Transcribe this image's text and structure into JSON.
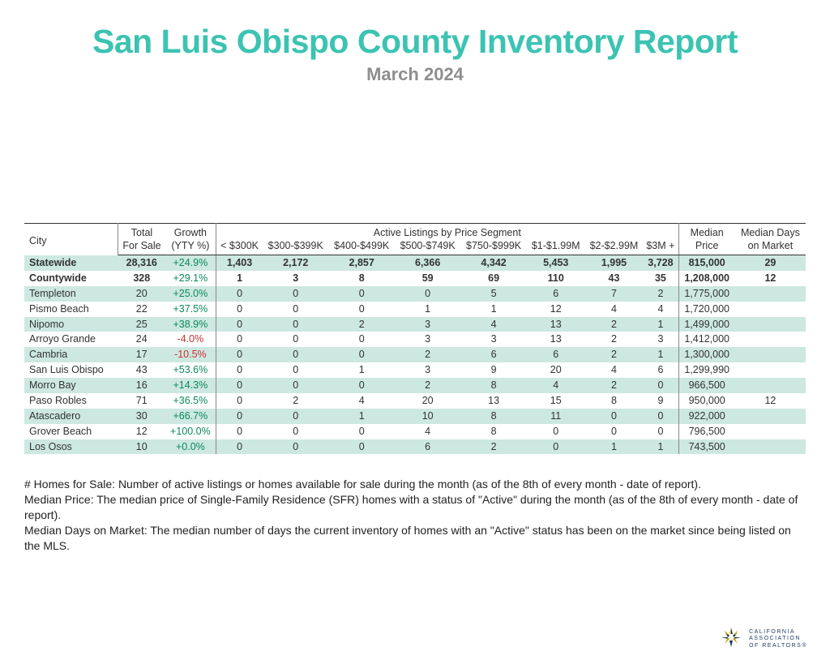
{
  "colors": {
    "title": "#3cc3b2",
    "subtitle": "#8e8e8e",
    "row_shade": "#cde8e1",
    "border": "#333333",
    "divider": "#888888",
    "growth_pos": "#0a8a5a",
    "growth_neg": "#c83232",
    "text": "#333333",
    "logo_primary": "#1a3a5a",
    "logo_accent": "#d4a017"
  },
  "header": {
    "title": "San Luis Obispo County Inventory Report",
    "subtitle": "March 2024"
  },
  "table": {
    "columns_top": {
      "city": "City",
      "total": "Total",
      "growth": "Growth",
      "active_segment": "Active Listings by Price Segment",
      "median": "Median",
      "median_days": "Median Days"
    },
    "columns_bottom": {
      "for_sale": "For Sale",
      "yty": "(YTY %)",
      "seg1": "< $300K",
      "seg2": "$300-$399K",
      "seg3": "$400-$499K",
      "seg4": "$500-$749K",
      "seg5": "$750-$999K",
      "seg6": "$1-$1.99M",
      "seg7": "$2-$2.99M",
      "seg8": "$3M +",
      "price": "Price",
      "on_market": "on Market"
    },
    "rows": [
      {
        "city": "Statewide",
        "bold": true,
        "shade": true,
        "for_sale": "28,316",
        "growth": "+24.9%",
        "growth_dir": "pos",
        "seg": [
          "1,403",
          "2,172",
          "2,857",
          "6,366",
          "4,342",
          "5,453",
          "1,995",
          "3,728"
        ],
        "price": "815,000",
        "days": "29"
      },
      {
        "city": "Countywide",
        "bold": true,
        "shade": false,
        "for_sale": "328",
        "growth": "+29.1%",
        "growth_dir": "pos",
        "seg": [
          "1",
          "3",
          "8",
          "59",
          "69",
          "110",
          "43",
          "35"
        ],
        "price": "1,208,000",
        "days": "12"
      },
      {
        "city": "Templeton",
        "bold": false,
        "shade": true,
        "for_sale": "20",
        "growth": "+25.0%",
        "growth_dir": "pos",
        "seg": [
          "0",
          "0",
          "0",
          "0",
          "5",
          "6",
          "7",
          "2"
        ],
        "price": "1,775,000",
        "days": ""
      },
      {
        "city": "Pismo Beach",
        "bold": false,
        "shade": false,
        "for_sale": "22",
        "growth": "+37.5%",
        "growth_dir": "pos",
        "seg": [
          "0",
          "0",
          "0",
          "1",
          "1",
          "12",
          "4",
          "4"
        ],
        "price": "1,720,000",
        "days": ""
      },
      {
        "city": "Nipomo",
        "bold": false,
        "shade": true,
        "for_sale": "25",
        "growth": "+38.9%",
        "growth_dir": "pos",
        "seg": [
          "0",
          "0",
          "2",
          "3",
          "4",
          "13",
          "2",
          "1"
        ],
        "price": "1,499,000",
        "days": ""
      },
      {
        "city": "Arroyo Grande",
        "bold": false,
        "shade": false,
        "for_sale": "24",
        "growth": "-4.0%",
        "growth_dir": "neg",
        "seg": [
          "0",
          "0",
          "0",
          "3",
          "3",
          "13",
          "2",
          "3"
        ],
        "price": "1,412,000",
        "days": ""
      },
      {
        "city": "Cambria",
        "bold": false,
        "shade": true,
        "for_sale": "17",
        "growth": "-10.5%",
        "growth_dir": "neg",
        "seg": [
          "0",
          "0",
          "0",
          "2",
          "6",
          "6",
          "2",
          "1"
        ],
        "price": "1,300,000",
        "days": ""
      },
      {
        "city": "San Luis Obispo",
        "bold": false,
        "shade": false,
        "for_sale": "43",
        "growth": "+53.6%",
        "growth_dir": "pos",
        "seg": [
          "0",
          "0",
          "1",
          "3",
          "9",
          "20",
          "4",
          "6"
        ],
        "price": "1,299,990",
        "days": ""
      },
      {
        "city": "Morro Bay",
        "bold": false,
        "shade": true,
        "for_sale": "16",
        "growth": "+14.3%",
        "growth_dir": "pos",
        "seg": [
          "0",
          "0",
          "0",
          "2",
          "8",
          "4",
          "2",
          "0"
        ],
        "price": "966,500",
        "days": ""
      },
      {
        "city": "Paso Robles",
        "bold": false,
        "shade": false,
        "for_sale": "71",
        "growth": "+36.5%",
        "growth_dir": "pos",
        "seg": [
          "0",
          "2",
          "4",
          "20",
          "13",
          "15",
          "8",
          "9"
        ],
        "price": "950,000",
        "days": "12"
      },
      {
        "city": "Atascadero",
        "bold": false,
        "shade": true,
        "for_sale": "30",
        "growth": "+66.7%",
        "growth_dir": "pos",
        "seg": [
          "0",
          "0",
          "1",
          "10",
          "8",
          "11",
          "0",
          "0"
        ],
        "price": "922,000",
        "days": ""
      },
      {
        "city": "Grover Beach",
        "bold": false,
        "shade": false,
        "for_sale": "12",
        "growth": "+100.0%",
        "growth_dir": "pos",
        "seg": [
          "0",
          "0",
          "0",
          "4",
          "8",
          "0",
          "0",
          "0"
        ],
        "price": "796,500",
        "days": ""
      },
      {
        "city": "Los Osos",
        "bold": false,
        "shade": true,
        "for_sale": "10",
        "growth": "+0.0%",
        "growth_dir": "pos",
        "seg": [
          "0",
          "0",
          "0",
          "6",
          "2",
          "0",
          "1",
          "1"
        ],
        "price": "743,500",
        "days": ""
      }
    ]
  },
  "footnotes": {
    "line1": "# Homes for Sale: Number of active listings or homes available for sale during the month (as of the 8th of every month - date of report).",
    "line2": "Median Price: The median price of Single-Family Residence (SFR) homes with a status of \"Active\" during the month (as of the 8th of every month - date of report).",
    "line3": "Median Days on Market: The median number of days the current inventory of homes with an \"Active\" status has been on the market since being listed on the MLS."
  },
  "logo": {
    "line1": "CALIFORNIA",
    "line2": "ASSOCIATION",
    "line3": "OF REALTORS®"
  }
}
